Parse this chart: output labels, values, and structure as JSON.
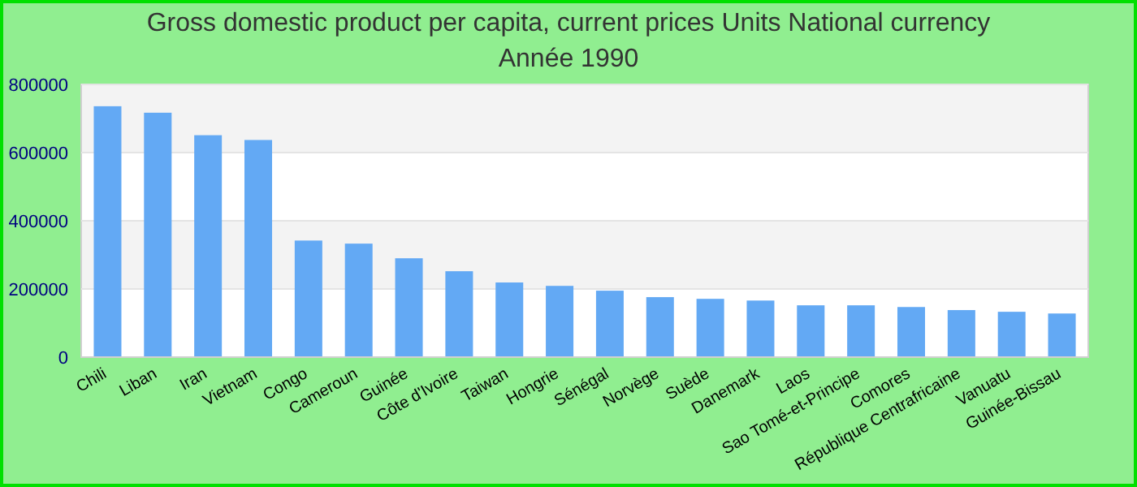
{
  "chart_data": {
    "type": "bar",
    "title": "Gross domestic product per capita, current prices Units National currency",
    "subtitle": "Année 1990",
    "categories": [
      "Chili",
      "Liban",
      "Iran",
      "Vietnam",
      "Congo",
      "Cameroun",
      "Guinée",
      "Côte d'Ivoire",
      "Taiwan",
      "Hongrie",
      "Sénégal",
      "Norvège",
      "Suède",
      "Danemark",
      "Laos",
      "Sao Tomé-et-Principe",
      "Comores",
      "République Centrafricaine",
      "Vanuatu",
      "Guinée-Bissau"
    ],
    "values": [
      736000,
      717000,
      651000,
      637000,
      342000,
      333000,
      290000,
      252000,
      219000,
      209000,
      195000,
      176000,
      171000,
      166000,
      152000,
      152000,
      147000,
      138000,
      133000,
      128000
    ],
    "color": "#63a9f4",
    "ylim": [
      0,
      800000
    ],
    "yticks": [
      0,
      200000,
      400000,
      600000,
      800000
    ],
    "grid": "y"
  }
}
